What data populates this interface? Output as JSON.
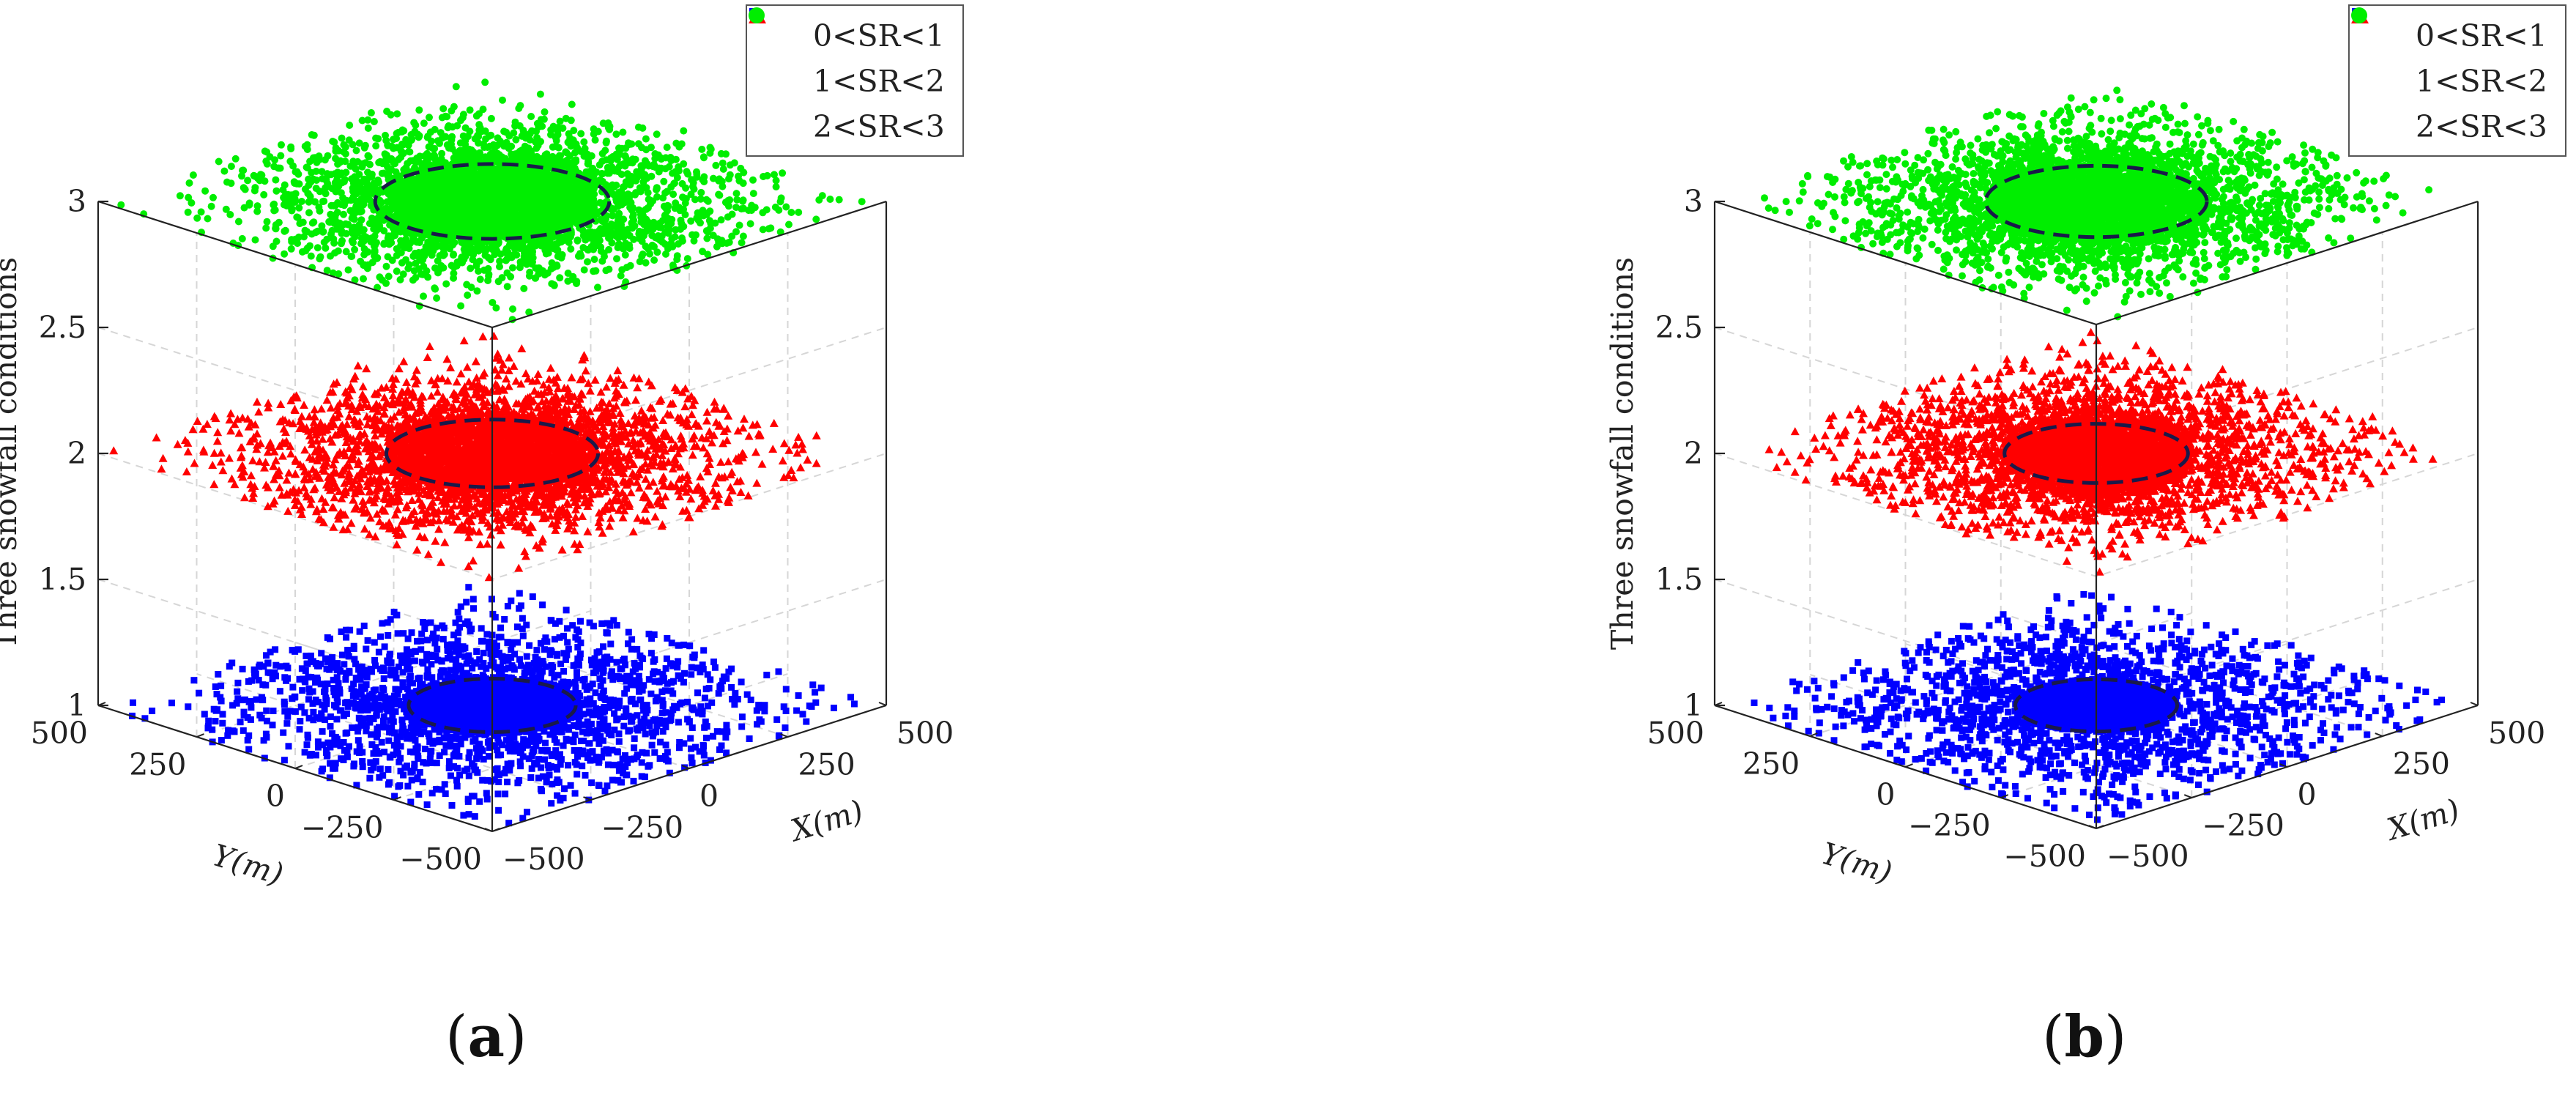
{
  "chart_data": [
    {
      "type": "scatter",
      "panel_label": "a",
      "zlabel": "Three snowfall conditions",
      "xlabel": "X(m)",
      "ylabel": "Y(m)",
      "xlim": [
        -500,
        500
      ],
      "ylim": [
        -500,
        500
      ],
      "zlim": [
        1,
        3
      ],
      "x_ticks": [
        "−500",
        "−250",
        "0",
        "250",
        "500"
      ],
      "y_ticks": [
        "−500",
        "−250",
        "0",
        "250",
        "500"
      ],
      "z_ticks": [
        "1",
        "1.5",
        "2",
        "2.5",
        "3"
      ],
      "legend_location": "top-right",
      "grid": true,
      "series": [
        {
          "name": "0<SR<1",
          "marker": "square",
          "color": "#0000ff",
          "z": 1,
          "count": 3600,
          "spread_m": 260,
          "dense_radius_m": 160
        },
        {
          "name": "1<SR<2",
          "marker": "triangle",
          "color": "#ff0000",
          "z": 2,
          "count": 4600,
          "spread_m": 230,
          "dense_radius_m": 190
        },
        {
          "name": "2<SR<3",
          "marker": "circle",
          "color": "#00ee00",
          "z": 3,
          "count": 4600,
          "spread_m": 230,
          "dense_radius_m": 190
        }
      ],
      "dashed_circles": [
        {
          "z": 1,
          "radius_m": 150
        },
        {
          "z": 2,
          "radius_m": 190
        },
        {
          "z": 3,
          "radius_m": 210
        }
      ]
    },
    {
      "type": "scatter",
      "panel_label": "b",
      "zlabel": "Three snowfall conditions",
      "xlabel": "X(m)",
      "ylabel": "Y(m)",
      "xlim": [
        -500,
        500
      ],
      "ylim": [
        -500,
        500
      ],
      "zlim": [
        1,
        3
      ],
      "x_ticks": [
        "−500",
        "−250",
        "0",
        "250",
        "500"
      ],
      "y_ticks": [
        "−500",
        "−250",
        "0",
        "250",
        "500"
      ],
      "z_ticks": [
        "1",
        "1.5",
        "2",
        "2.5",
        "3"
      ],
      "legend_location": "top-right",
      "grid": true,
      "series": [
        {
          "name": "0<SR<1",
          "marker": "square",
          "color": "#0000ff",
          "z": 1,
          "count": 3400,
          "spread_m": 270,
          "dense_radius_m": 150
        },
        {
          "name": "1<SR<2",
          "marker": "triangle",
          "color": "#ff0000",
          "z": 2,
          "count": 4400,
          "spread_m": 240,
          "dense_radius_m": 175
        },
        {
          "name": "2<SR<3",
          "marker": "circle",
          "color": "#00ee00",
          "z": 3,
          "count": 4400,
          "spread_m": 235,
          "dense_radius_m": 200
        }
      ],
      "dashed_circles": [
        {
          "z": 1,
          "radius_m": 150
        },
        {
          "z": 2,
          "radius_m": 170
        },
        {
          "z": 3,
          "radius_m": 205
        }
      ]
    }
  ]
}
